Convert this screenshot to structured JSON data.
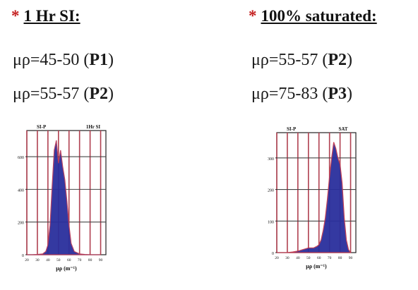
{
  "left": {
    "heading": "1 Hr SI:",
    "bullet": "*",
    "lines": [
      {
        "prefix": "μρ=45-50 (",
        "tag": "P1",
        "suffix": ")"
      },
      {
        "prefix": "μρ=55-57 (",
        "tag": "P2",
        "suffix": ")"
      }
    ]
  },
  "right": {
    "heading": "100% saturated:",
    "bullet": "*",
    "lines": [
      {
        "prefix": "μρ=55-57 (",
        "tag": "P2",
        "suffix": ")"
      },
      {
        "prefix": "μρ=75-83 (",
        "tag": "P3",
        "suffix": ")"
      }
    ]
  },
  "chart_data": [
    {
      "type": "area",
      "marker_labels": [
        "SI-P",
        "1Hr SI"
      ],
      "xlabel": "μρ (m⁻¹)",
      "xticks": [
        20,
        30,
        40,
        50,
        60,
        70,
        80,
        90
      ],
      "yticks": [
        0,
        200,
        400,
        600
      ],
      "xlim": [
        20,
        95
      ],
      "ylim": [
        0,
        760
      ],
      "fill_color": "#2a2f9c",
      "edge_color": "#b83a5a",
      "x": [
        20,
        25,
        30,
        35,
        38,
        40,
        42,
        44,
        46,
        48,
        50,
        52,
        54,
        56,
        58,
        60,
        62,
        65,
        70,
        75,
        80,
        90
      ],
      "y": [
        0,
        0,
        2,
        5,
        20,
        60,
        180,
        420,
        640,
        700,
        560,
        640,
        540,
        460,
        330,
        180,
        70,
        20,
        5,
        2,
        0,
        0
      ]
    },
    {
      "type": "area",
      "marker_labels": [
        "SI-P",
        "SAT"
      ],
      "xlabel": "μρ (m⁻¹)",
      "xticks": [
        20,
        30,
        40,
        50,
        60,
        70,
        80,
        90
      ],
      "yticks": [
        0,
        100,
        200,
        300
      ],
      "xlim": [
        20,
        95
      ],
      "ylim": [
        0,
        380
      ],
      "fill_color": "#2a2f9c",
      "edge_color": "#c43a50",
      "x": [
        20,
        30,
        35,
        40,
        45,
        50,
        55,
        58,
        60,
        62,
        64,
        66,
        68,
        70,
        72,
        74,
        76,
        78,
        80,
        82,
        84,
        86,
        88,
        90
      ],
      "y": [
        0,
        0,
        2,
        5,
        10,
        15,
        15,
        20,
        25,
        40,
        70,
        110,
        170,
        240,
        300,
        350,
        330,
        300,
        280,
        220,
        110,
        40,
        10,
        0
      ]
    }
  ]
}
